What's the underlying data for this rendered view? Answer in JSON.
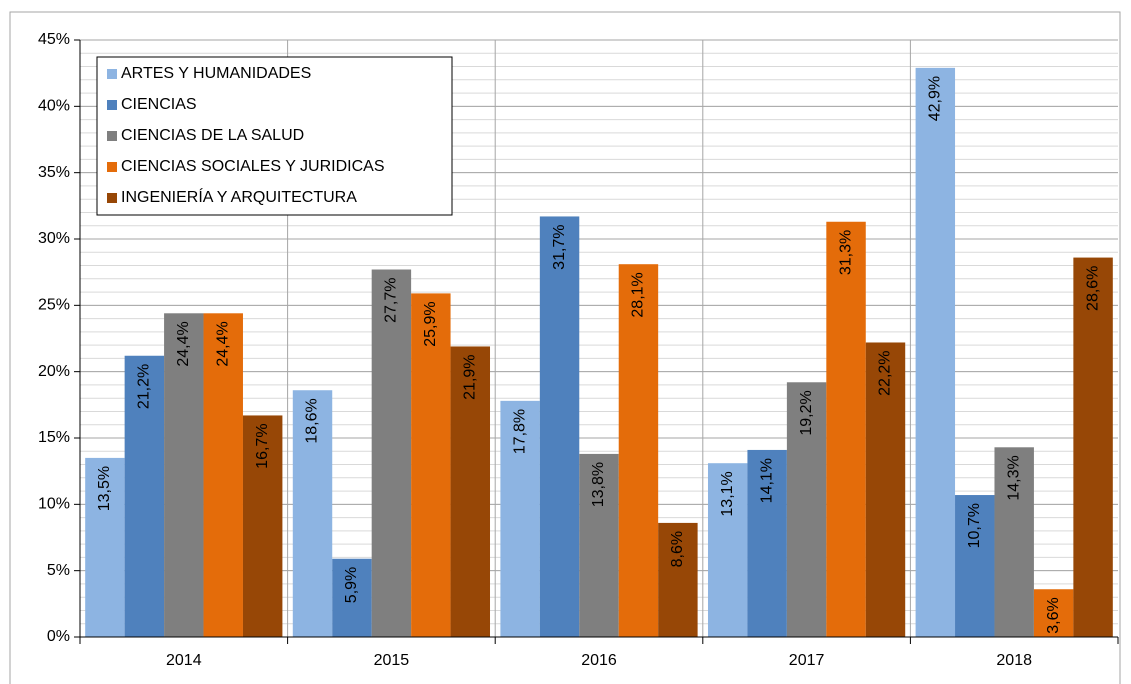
{
  "chart_data": {
    "type": "bar",
    "categories": [
      "2014",
      "2015",
      "2016",
      "2017",
      "2018"
    ],
    "series": [
      {
        "name": "ARTES Y HUMANIDADES",
        "color": "#8db4e2",
        "values": [
          13.5,
          18.6,
          17.8,
          13.1,
          42.9
        ],
        "value_labels": [
          "13,5%",
          "18,6%",
          "17,8%",
          "13,1%",
          "42,9%"
        ]
      },
      {
        "name": "CIENCIAS",
        "color": "#4f81bd",
        "values": [
          21.2,
          5.9,
          31.7,
          14.1,
          10.7
        ],
        "value_labels": [
          "21,2%",
          "5,9%",
          "31,7%",
          "14,1%",
          "10,7%"
        ]
      },
      {
        "name": "CIENCIAS DE LA SALUD",
        "color": "#7f7f7f",
        "values": [
          24.4,
          27.7,
          13.8,
          19.2,
          14.3
        ],
        "value_labels": [
          "24,4%",
          "27,7%",
          "13,8%",
          "19,2%",
          "14,3%"
        ]
      },
      {
        "name": "CIENCIAS SOCIALES Y JURIDICAS",
        "color": "#e46c0a",
        "values": [
          24.4,
          25.9,
          28.1,
          31.3,
          3.6
        ],
        "value_labels": [
          "24,4%",
          "25,9%",
          "28,1%",
          "31,3%",
          "3,6%"
        ]
      },
      {
        "name": "INGENIERÍA Y ARQUITECTURA",
        "color": "#974706",
        "values": [
          16.7,
          21.9,
          8.6,
          22.2,
          28.6
        ],
        "value_labels": [
          "16,7%",
          "21,9%",
          "8,6%",
          "22,2%",
          "28,6%"
        ]
      }
    ],
    "ylim": [
      0,
      45
    ],
    "yticks": [
      {
        "value": 0,
        "label": "0%"
      },
      {
        "value": 5,
        "label": "5%"
      },
      {
        "value": 10,
        "label": "10%"
      },
      {
        "value": 15,
        "label": "15%"
      },
      {
        "value": 20,
        "label": "20%"
      },
      {
        "value": 25,
        "label": "25%"
      },
      {
        "value": 30,
        "label": "30%"
      },
      {
        "value": 35,
        "label": "35%"
      },
      {
        "value": 40,
        "label": "40%"
      },
      {
        "value": 45,
        "label": "45%"
      }
    ],
    "grid": true,
    "minor_grid_step": 1,
    "legend": "upper left"
  }
}
